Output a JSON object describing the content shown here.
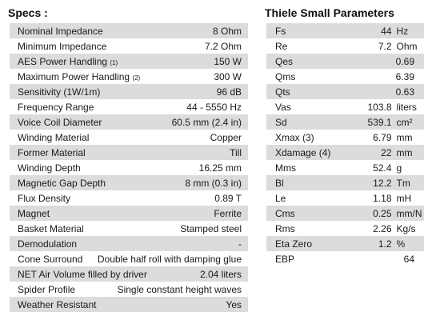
{
  "specs": {
    "title": "Specs :",
    "rows": [
      {
        "label": "Nominal Impedance",
        "note": "",
        "value": "8 Ohm"
      },
      {
        "label": "Minimum Impedance",
        "note": "",
        "value": "7.2 Ohm"
      },
      {
        "label": "AES Power Handling",
        "note": "(1)",
        "value": "150 W"
      },
      {
        "label": "Maximum Power Handling",
        "note": "(2)",
        "value": "300 W"
      },
      {
        "label": "Sensitivity (1W/1m)",
        "note": "",
        "value": "96 dB"
      },
      {
        "label": "Frequency Range",
        "note": "",
        "value": "44 - 5550 Hz"
      },
      {
        "label": "Voice Coil Diameter",
        "note": "",
        "value": "60.5 mm (2.4 in)"
      },
      {
        "label": "Winding Material",
        "note": "",
        "value": "Copper"
      },
      {
        "label": "Former Material",
        "note": "",
        "value": "Till"
      },
      {
        "label": "Winding Depth",
        "note": "",
        "value": "16.25 mm"
      },
      {
        "label": "Magnetic Gap Depth",
        "note": "",
        "value": "8 mm (0.3 in)"
      },
      {
        "label": "Flux Density",
        "note": "",
        "value": "0.89 T"
      },
      {
        "label": "Magnet",
        "note": "",
        "value": "Ferrite"
      },
      {
        "label": "Basket Material",
        "note": "",
        "value": "Stamped steel"
      },
      {
        "label": "Demodulation",
        "note": "",
        "value": "-"
      },
      {
        "label": "Cone Surround",
        "note": "",
        "value": "Double half roll with damping glue"
      },
      {
        "label": "NET Air Volume filled by driver",
        "note": "",
        "value": "2.04 liters"
      },
      {
        "label": "Spider Profile",
        "note": "",
        "value": "Single constant height waves"
      },
      {
        "label": "Weather Resistant",
        "note": "",
        "value": "Yes"
      }
    ]
  },
  "thiele_small": {
    "title": "Thiele Small Parameters",
    "rows": [
      {
        "label": "Fs",
        "value": "44",
        "unit": "Hz"
      },
      {
        "label": "Re",
        "value": "7.2",
        "unit": "Ohm"
      },
      {
        "label": "Qes",
        "value": "0.69",
        "unit": ""
      },
      {
        "label": "Qms",
        "value": "6.39",
        "unit": ""
      },
      {
        "label": "Qts",
        "value": "0.63",
        "unit": ""
      },
      {
        "label": "Vas",
        "value": "103.8",
        "unit": "liters"
      },
      {
        "label": "Sd",
        "value": "539.1",
        "unit": "cm²"
      },
      {
        "label": "Xmax (3)",
        "value": "6.79",
        "unit": "mm"
      },
      {
        "label": "Xdamage (4)",
        "value": "22",
        "unit": "mm"
      },
      {
        "label": "Mms",
        "value": "52.4",
        "unit": "g"
      },
      {
        "label": "Bl",
        "value": "12.2",
        "unit": "Tm"
      },
      {
        "label": "Le",
        "value": "1.18",
        "unit": "mH"
      },
      {
        "label": "Cms",
        "value": "0.25",
        "unit": "mm/N"
      },
      {
        "label": "Rms",
        "value": "2.26",
        "unit": "Kg/s"
      },
      {
        "label": "Eta Zero",
        "value": "1.2",
        "unit": "%"
      },
      {
        "label": "EBP",
        "value": "64",
        "unit": ""
      }
    ]
  }
}
